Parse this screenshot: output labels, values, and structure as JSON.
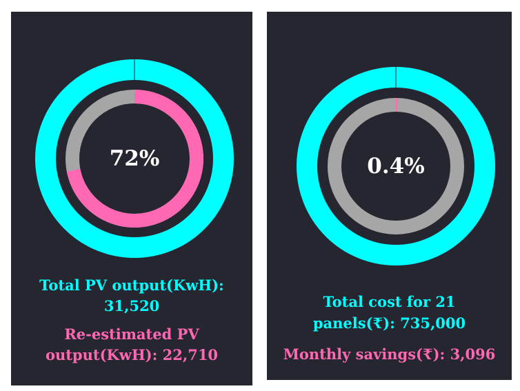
{
  "colors": {
    "background": "#262630",
    "outer_ring": "#00FFFF",
    "inner_track": "#A6A6A6",
    "inner_fill": "#FF69B4",
    "center_text": "#FFFFFF"
  },
  "chart_data": [
    {
      "type": "donut",
      "center_label": "72%",
      "outer_ring_fraction": 1.0,
      "inner_ring_fraction": 0.72,
      "captions": {
        "line1": "Total PV output(KwH):",
        "line2": "31,520",
        "line3": "Re-estimated PV",
        "line4": "output(KwH): 22,710"
      },
      "values": {
        "total_pv_output_kwh": 31520,
        "re_estimated_pv_output_kwh": 22710
      }
    },
    {
      "type": "donut",
      "center_label": "0.4%",
      "outer_ring_fraction": 1.0,
      "inner_ring_fraction": 0.004,
      "captions": {
        "line1": "Total cost for 21",
        "line2": "panels(₹): 735,000",
        "line3": "Monthly savings(₹): 3,096"
      },
      "values": {
        "panels": 21,
        "total_cost_inr": 735000,
        "monthly_savings_inr": 3096
      }
    }
  ]
}
